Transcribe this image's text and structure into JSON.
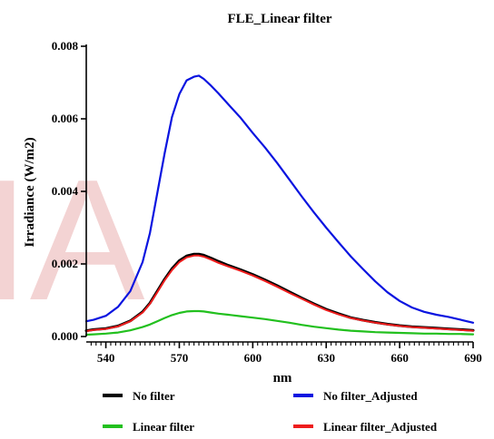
{
  "chart_data": {
    "type": "line",
    "title": "FLE_Linear filter",
    "xlabel": "nm",
    "ylabel": "Irradiance (W/m2)",
    "xlim": [
      532,
      690
    ],
    "ylim": [
      0,
      0.008
    ],
    "xticks": [
      540,
      570,
      600,
      630,
      660,
      690
    ],
    "xtick_labels": [
      "540",
      "570",
      "600",
      "630",
      "660",
      "690"
    ],
    "yticks": [
      0,
      0.002,
      0.004,
      0.006,
      0.008
    ],
    "ytick_labels": [
      "0.000",
      "0.002",
      "0.004",
      "0.006",
      "0.008"
    ],
    "legend_position": "bottom",
    "grid": false,
    "watermark_text": "IA",
    "x": [
      532,
      535,
      540,
      545,
      550,
      555,
      558,
      561,
      564,
      567,
      570,
      573,
      576,
      578,
      580,
      583,
      586,
      590,
      595,
      600,
      605,
      610,
      615,
      620,
      625,
      630,
      635,
      640,
      645,
      650,
      655,
      660,
      665,
      670,
      675,
      680,
      685,
      690
    ],
    "series": [
      {
        "name": "No filter",
        "color": "#000000",
        "values": [
          0.00016,
          0.00019,
          0.00022,
          0.00029,
          0.00043,
          0.00068,
          0.00092,
          0.00125,
          0.00158,
          0.00187,
          0.00209,
          0.00222,
          0.00227,
          0.00227,
          0.00224,
          0.00216,
          0.00207,
          0.00196,
          0.00184,
          0.00171,
          0.00156,
          0.0014,
          0.00123,
          0.00106,
          0.0009,
          0.00075,
          0.00063,
          0.00052,
          0.00045,
          0.00039,
          0.00034,
          0.0003,
          0.00027,
          0.00025,
          0.00023,
          0.00021,
          0.00019,
          0.00017
        ]
      },
      {
        "name": "No filter_Adjusted",
        "color": "#0a14e0",
        "values": [
          0.00042,
          0.00046,
          0.00057,
          0.00082,
          0.00125,
          0.00205,
          0.00285,
          0.00395,
          0.00505,
          0.00605,
          0.00668,
          0.00706,
          0.00716,
          0.00719,
          0.0071,
          0.00691,
          0.0067,
          0.0064,
          0.00603,
          0.00561,
          0.00521,
          0.00478,
          0.00432,
          0.00386,
          0.00342,
          0.003,
          0.0026,
          0.00221,
          0.00186,
          0.00152,
          0.00122,
          0.00098,
          0.0008,
          0.00068,
          0.0006,
          0.00054,
          0.00046,
          0.00038
        ]
      },
      {
        "name": "Linear filter",
        "color": "#22c01e",
        "values": [
          5e-05,
          6e-05,
          8e-05,
          0.00011,
          0.00017,
          0.00026,
          0.00033,
          0.00042,
          0.00051,
          0.00059,
          0.00065,
          0.00069,
          0.0007,
          0.0007,
          0.00069,
          0.00066,
          0.00063,
          0.0006,
          0.00056,
          0.00052,
          0.00048,
          0.00043,
          0.00038,
          0.00032,
          0.00027,
          0.00023,
          0.00019,
          0.00016,
          0.00014,
          0.00012,
          0.00011,
          0.0001,
          9e-05,
          8e-05,
          8e-05,
          7e-05,
          7e-05,
          6e-05
        ]
      },
      {
        "name": "Linear filter_Adjusted",
        "color": "#ee1c1c",
        "values": [
          0.00015,
          0.00018,
          0.00021,
          0.00028,
          0.00042,
          0.00066,
          0.0009,
          0.00122,
          0.00155,
          0.00183,
          0.00205,
          0.00218,
          0.00223,
          0.00223,
          0.0022,
          0.00212,
          0.00203,
          0.00193,
          0.00181,
          0.00168,
          0.00153,
          0.00137,
          0.0012,
          0.00104,
          0.00088,
          0.00073,
          0.00061,
          0.00051,
          0.00044,
          0.00038,
          0.00033,
          0.00029,
          0.00026,
          0.00024,
          0.00022,
          0.0002,
          0.00018,
          0.00016
        ]
      }
    ]
  }
}
